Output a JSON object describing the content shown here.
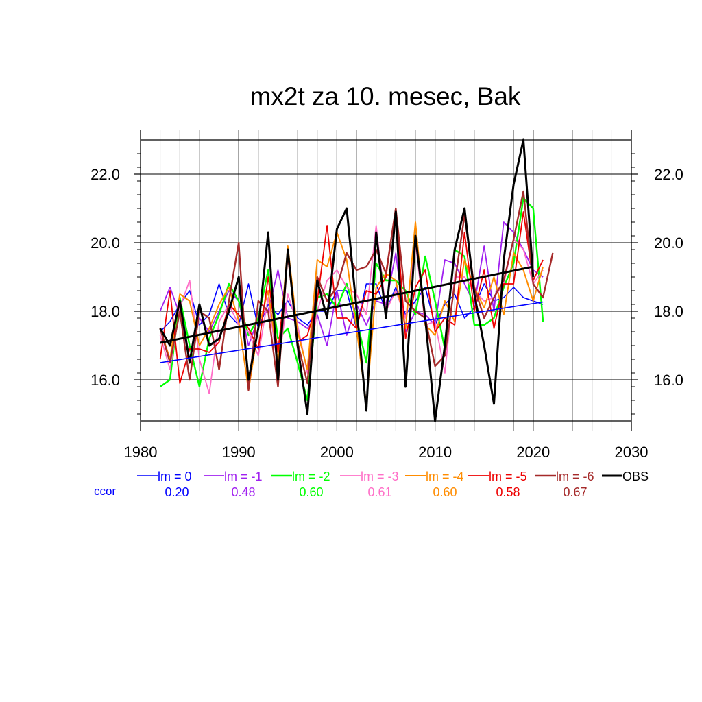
{
  "chart_data": {
    "type": "line",
    "title": "mx2t za 10. mesec, Bak",
    "xlabel": "",
    "ylabel": "",
    "xlim": [
      1980,
      2030
    ],
    "ylim": [
      14.8,
      23.0
    ],
    "x_ticks": [
      1980,
      1990,
      2000,
      2010,
      2020,
      2030
    ],
    "x_tick_labels": [
      "1980",
      "1990",
      "2000",
      "2010",
      "2020",
      "2030"
    ],
    "y_ticks": [
      16.0,
      18.0,
      20.0,
      22.0
    ],
    "y_tick_labels": [
      "16.0",
      "18.0",
      "20.0",
      "22.0"
    ],
    "grid": true,
    "legend": {
      "placement": "bottom",
      "ccor_label": "ccor"
    },
    "series": [
      {
        "name": "lm = 0",
        "ccor": "0.20",
        "color": "#0000ff",
        "width": 1.6,
        "x": [
          1982,
          1983,
          1984,
          1985,
          1986,
          1987,
          1988,
          1989,
          1990,
          1991,
          1992,
          1993,
          1994,
          1995,
          1996,
          1997,
          1998,
          1999,
          2000,
          2001,
          2002,
          2003,
          2004,
          2005,
          2006,
          2007,
          2008,
          2009,
          2010,
          2011,
          2012,
          2013,
          2014,
          2015,
          2016,
          2017,
          2018,
          2019,
          2020,
          2021
        ],
        "y": [
          17.4,
          17.7,
          18.2,
          18.6,
          17.6,
          17.9,
          18.8,
          17.9,
          17.6,
          18.8,
          17.5,
          18.2,
          17.9,
          18.3,
          17.8,
          17.6,
          18.0,
          18.0,
          18.6,
          18.6,
          17.5,
          18.8,
          18.8,
          18.0,
          18.7,
          17.9,
          18.3,
          18.7,
          17.6,
          18.2,
          18.5,
          17.8,
          18.1,
          18.8,
          18.3,
          18.4,
          18.7,
          18.4,
          18.3,
          18.2
        ]
      },
      {
        "name": "lm = -1",
        "ccor": "0.48",
        "color": "#a020f0",
        "width": 1.8,
        "x": [
          1982,
          1983,
          1984,
          1985,
          1986,
          1987,
          1988,
          1989,
          1990,
          1991,
          1992,
          1993,
          1994,
          1995,
          1996,
          1997,
          1998,
          1999,
          2000,
          2001,
          2002,
          2003,
          2004,
          2005,
          2006,
          2007,
          2008,
          2009,
          2010,
          2011,
          2012,
          2013,
          2014,
          2015,
          2016,
          2017,
          2018,
          2019,
          2020,
          2021
        ],
        "y": [
          18.0,
          18.7,
          17.9,
          16.6,
          17.8,
          17.4,
          18.0,
          18.6,
          18.3,
          17.0,
          17.8,
          18.0,
          19.2,
          17.8,
          17.7,
          17.5,
          17.9,
          17.0,
          18.6,
          17.3,
          18.2,
          17.6,
          18.3,
          18.2,
          19.7,
          17.4,
          18.0,
          17.9,
          17.6,
          19.5,
          19.4,
          18.8,
          18.2,
          19.9,
          18.0,
          20.6,
          20.3,
          19.8,
          19.2,
          19.0
        ]
      },
      {
        "name": "lm = -2",
        "ccor": "0.60",
        "color": "#00ff00",
        "width": 2.4,
        "x": [
          1982,
          1983,
          1984,
          1985,
          1986,
          1987,
          1988,
          1989,
          1990,
          1991,
          1992,
          1993,
          1994,
          1995,
          1996,
          1997,
          1998,
          1999,
          2000,
          2001,
          2002,
          2003,
          2004,
          2005,
          2006,
          2007,
          2008,
          2009,
          2010,
          2011,
          2012,
          2013,
          2014,
          2015,
          2016,
          2017,
          2018,
          2019,
          2020,
          2021
        ],
        "y": [
          15.8,
          16.0,
          18.4,
          17.0,
          15.8,
          17.2,
          17.9,
          18.8,
          18.3,
          17.3,
          17.8,
          19.2,
          17.2,
          17.5,
          16.5,
          15.4,
          18.4,
          18.5,
          18.1,
          18.8,
          17.8,
          16.5,
          19.4,
          18.9,
          18.9,
          18.6,
          17.9,
          19.6,
          18.3,
          16.9,
          19.8,
          19.6,
          17.6,
          17.6,
          17.8,
          18.7,
          19.4,
          21.3,
          21.0,
          17.7
        ]
      },
      {
        "name": "lm = -3",
        "ccor": "0.61",
        "color": "#ff6ec7",
        "width": 1.8,
        "x": [
          1982,
          1983,
          1984,
          1985,
          1986,
          1987,
          1988,
          1989,
          1990,
          1991,
          1992,
          1993,
          1994,
          1995,
          1996,
          1997,
          1998,
          1999,
          2000,
          2001,
          2002,
          2003,
          2004,
          2005,
          2006,
          2007,
          2008,
          2009,
          2010,
          2011,
          2012,
          2013,
          2014,
          2015,
          2016,
          2017,
          2018,
          2019,
          2020,
          2021
        ],
        "y": [
          17.3,
          16.3,
          18.1,
          18.9,
          16.6,
          15.6,
          17.7,
          18.2,
          17.6,
          17.4,
          16.7,
          18.4,
          16.3,
          18.5,
          17.6,
          16.2,
          18.0,
          18.9,
          19.2,
          18.7,
          18.5,
          17.9,
          20.5,
          18.0,
          18.6,
          17.8,
          20.0,
          17.6,
          17.7,
          16.2,
          19.0,
          19.0,
          18.6,
          18.3,
          18.4,
          18.8,
          20.1,
          19.8,
          18.8,
          19.2
        ]
      },
      {
        "name": "lm = -4",
        "ccor": "0.60",
        "color": "#ff8c00",
        "width": 2.0,
        "x": [
          1982,
          1983,
          1984,
          1985,
          1986,
          1987,
          1988,
          1989,
          1990,
          1991,
          1992,
          1993,
          1994,
          1995,
          1996,
          1997,
          1998,
          1999,
          2000,
          2001,
          2002,
          2003,
          2004,
          2005,
          2006,
          2007,
          2008,
          2009,
          2010,
          2011,
          2012,
          2013,
          2014,
          2015,
          2016,
          2017,
          2018,
          2019,
          2020,
          2021
        ],
        "y": [
          17.5,
          16.6,
          18.5,
          18.3,
          17.0,
          17.5,
          18.2,
          18.7,
          17.7,
          15.7,
          17.5,
          18.6,
          16.5,
          19.9,
          17.4,
          16.3,
          19.5,
          19.3,
          20.3,
          19.5,
          17.5,
          15.3,
          18.7,
          19.1,
          18.9,
          17.5,
          20.6,
          17.6,
          17.3,
          18.3,
          17.7,
          19.5,
          18.7,
          18.1,
          19.0,
          17.9,
          19.7,
          19.2,
          18.3,
          19.3
        ]
      },
      {
        "name": "lm = -5",
        "ccor": "0.58",
        "color": "#ee0000",
        "width": 1.8,
        "x": [
          1982,
          1983,
          1984,
          1985,
          1986,
          1987,
          1988,
          1989,
          1990,
          1991,
          1992,
          1993,
          1994,
          1995,
          1996,
          1997,
          1998,
          1999,
          2000,
          2001,
          2002,
          2003,
          2004,
          2005,
          2006,
          2007,
          2008,
          2009,
          2010,
          2011,
          2012,
          2013,
          2014,
          2015,
          2016,
          2017,
          2018,
          2019,
          2020,
          2021
        ],
        "y": [
          16.6,
          18.6,
          15.9,
          16.9,
          16.9,
          16.8,
          17.1,
          18.2,
          17.9,
          17.5,
          16.9,
          19.0,
          16.8,
          19.6,
          17.1,
          17.3,
          18.3,
          20.5,
          17.8,
          17.8,
          17.5,
          18.6,
          18.5,
          19.0,
          21.0,
          17.2,
          18.7,
          19.2,
          17.4,
          17.8,
          17.6,
          20.3,
          18.0,
          19.2,
          17.5,
          18.8,
          18.8,
          20.9,
          18.9,
          19.5
        ]
      },
      {
        "name": "lm = -6",
        "ccor": "0.67",
        "color": "#a52a2a",
        "width": 2.4,
        "x": [
          1982,
          1983,
          1984,
          1985,
          1986,
          1987,
          1988,
          1989,
          1990,
          1991,
          1992,
          1993,
          1994,
          1995,
          1996,
          1997,
          1998,
          1999,
          2000,
          2001,
          2002,
          2003,
          2004,
          2005,
          2006,
          2007,
          2008,
          2009,
          2010,
          2011,
          2012,
          2013,
          2014,
          2015,
          2016,
          2017,
          2018,
          2019,
          2020,
          2021,
          2022
        ],
        "y": [
          17.5,
          16.5,
          18.0,
          16.0,
          18.0,
          17.8,
          16.3,
          18.3,
          20.0,
          15.7,
          18.3,
          18.0,
          15.8,
          19.7,
          17.1,
          15.9,
          19.0,
          18.3,
          18.7,
          19.7,
          19.2,
          19.3,
          19.8,
          19.1,
          21.0,
          18.3,
          18.0,
          17.8,
          16.4,
          16.7,
          18.8,
          20.8,
          18.7,
          17.8,
          18.4,
          18.9,
          20.1,
          21.5,
          18.8,
          18.4,
          19.7
        ]
      },
      {
        "name": "OBS",
        "ccor": "",
        "color": "#000000",
        "width": 3.0,
        "x": [
          1982,
          1983,
          1984,
          1985,
          1986,
          1987,
          1988,
          1989,
          1990,
          1991,
          1992,
          1993,
          1994,
          1995,
          1996,
          1997,
          1998,
          1999,
          2000,
          2001,
          2002,
          2003,
          2004,
          2005,
          2006,
          2007,
          2008,
          2009,
          2010,
          2011,
          2012,
          2013,
          2014,
          2015,
          2016,
          2017,
          2018,
          2019,
          2020
        ],
        "y": [
          17.5,
          17.0,
          18.3,
          16.5,
          18.2,
          17.0,
          17.2,
          18.0,
          19.0,
          16.0,
          17.5,
          20.3,
          16.0,
          19.8,
          17.0,
          15.0,
          18.9,
          17.8,
          20.4,
          21.0,
          18.1,
          15.1,
          20.3,
          17.8,
          20.9,
          15.8,
          20.2,
          17.8,
          14.8,
          17.0,
          19.8,
          21.0,
          18.5,
          17.0,
          15.3,
          19.5,
          21.7,
          23.0,
          19.0
        ]
      }
    ],
    "trend_lines": [
      {
        "name": "lm = 0 trend",
        "color": "#0000ff",
        "width": 1.6,
        "x": [
          1982,
          2021
        ],
        "y": [
          16.5,
          18.27
        ]
      },
      {
        "name": "OBS trend",
        "color": "#000000",
        "width": 3.0,
        "x": [
          1982,
          2020
        ],
        "y": [
          17.08,
          19.3
        ]
      }
    ]
  }
}
